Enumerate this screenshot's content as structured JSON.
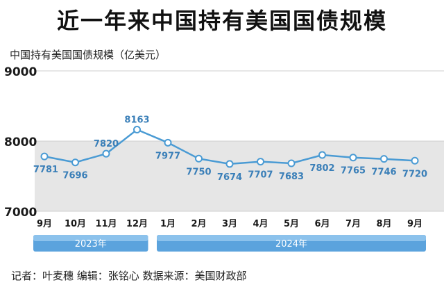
{
  "title": "近一年来中国持有美国国债规模",
  "colors": {
    "line": "#4a9bd4",
    "label": "#3a7fb8",
    "band": "#5ba3dd",
    "band_light": "#eaf3fb",
    "gray_band": "#e6e6e6"
  },
  "chart_data": {
    "type": "line",
    "ylabel": "中国持有美国国债规模（亿美元）",
    "ylim": [
      7000,
      9000
    ],
    "yticks": [
      7000,
      8000,
      9000
    ],
    "categories": [
      "9月",
      "10月",
      "11月",
      "12月",
      "1月",
      "2月",
      "3月",
      "4月",
      "5月",
      "6月",
      "7月",
      "8月",
      "9月"
    ],
    "series": [
      {
        "values": [
          7781,
          7696,
          7820,
          8163,
          7977,
          7750,
          7674,
          7707,
          7683,
          7802,
          7765,
          7746,
          7720
        ]
      }
    ],
    "year_groups": [
      {
        "label": "2023年",
        "from": 0,
        "to": 3
      },
      {
        "label": "2024年",
        "from": 4,
        "to": 12
      }
    ],
    "grid": false
  },
  "footer": {
    "text": "记者：叶麦穗  编辑：张铭心  数据来源：美国财政部"
  }
}
